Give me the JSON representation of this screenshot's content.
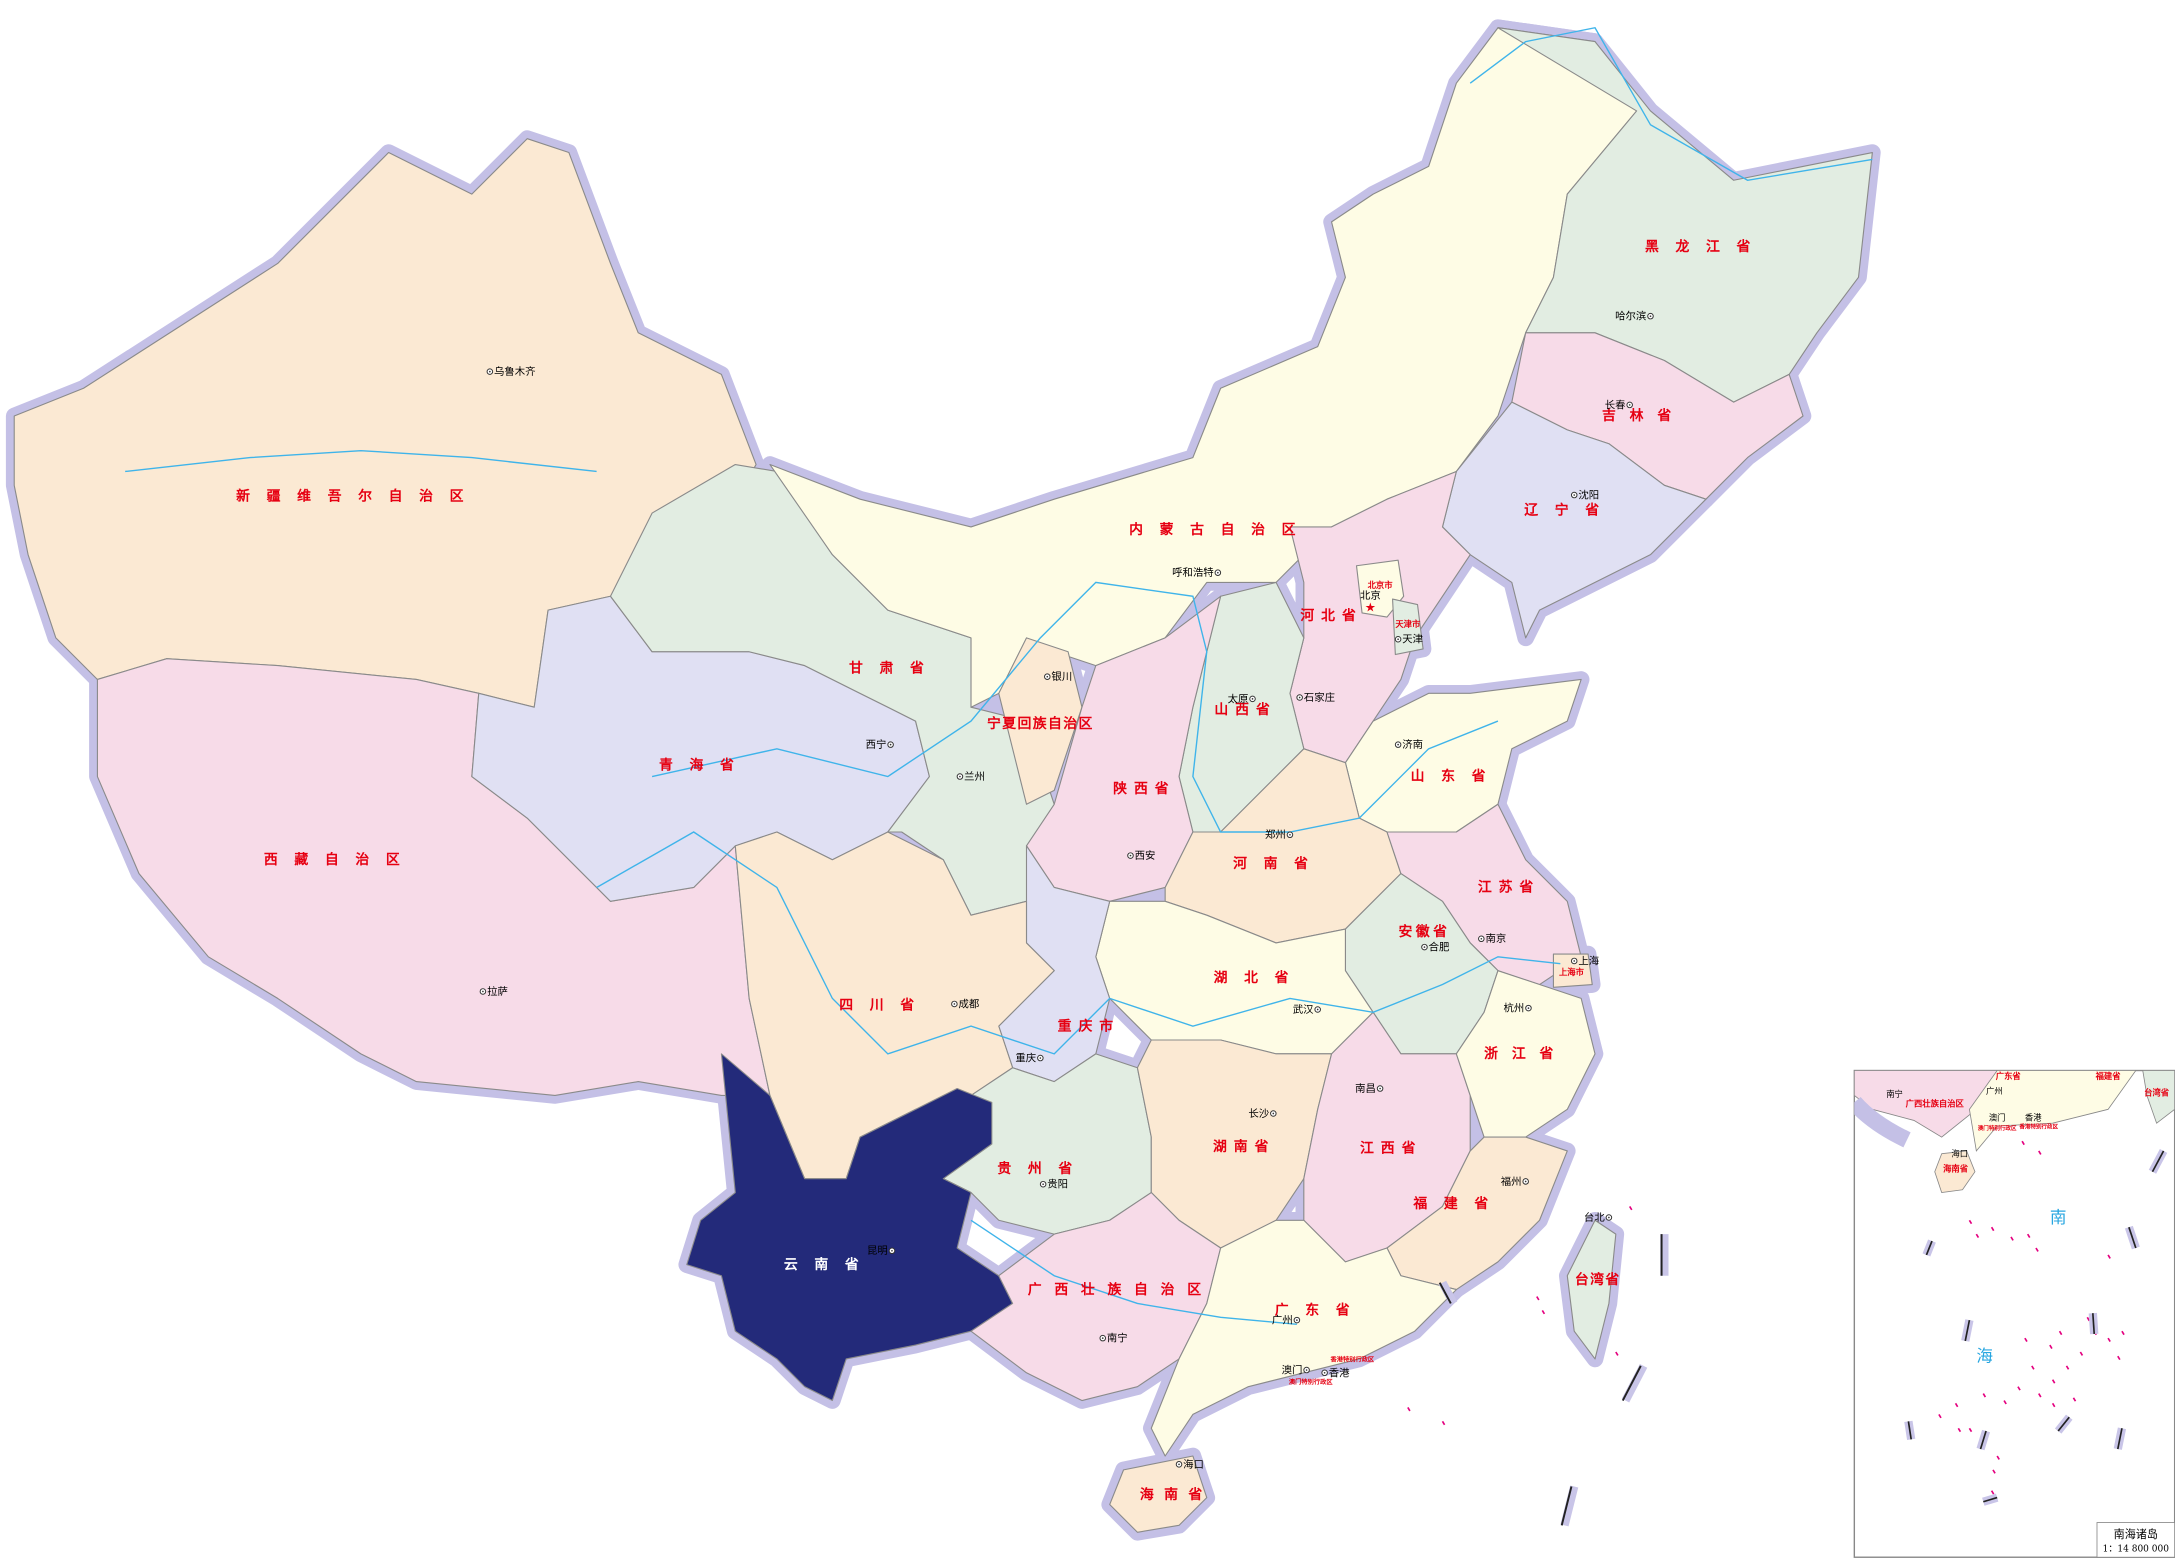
{
  "map": {
    "highlighted_province": "云南省",
    "colors": {
      "highlight": "#232a7a",
      "cream": "#fefce5",
      "peach": "#fbe9d3",
      "pink": "#f7dbe8",
      "green": "#e2ede2",
      "lavender": "#e0e0f3",
      "border_halo": "#c4c0e6",
      "river": "#3fb4ea",
      "label": "#e60012",
      "islands": "#e4007f"
    },
    "provinces": [
      {
        "name": "新疆维吾尔自治区",
        "color": "#fbe9d3"
      },
      {
        "name": "西藏自治区",
        "color": "#f7dbe8"
      },
      {
        "name": "青海省",
        "color": "#e0e0f3"
      },
      {
        "name": "甘肃省",
        "color": "#e2ede2"
      },
      {
        "name": "内蒙古自治区",
        "color": "#fefce5"
      },
      {
        "name": "黑龙江省",
        "color": "#e2ede2"
      },
      {
        "name": "吉林省",
        "color": "#f7dbe8"
      },
      {
        "name": "辽宁省",
        "color": "#e0e0f3"
      },
      {
        "name": "河北省",
        "color": "#f7dbe8"
      },
      {
        "name": "北京市",
        "color": "#fefce5"
      },
      {
        "name": "天津市",
        "color": "#e2ede2"
      },
      {
        "name": "山西省",
        "color": "#e2ede2"
      },
      {
        "name": "宁夏回族自治区",
        "color": "#fbe9d3"
      },
      {
        "name": "陕西省",
        "color": "#f7dbe8"
      },
      {
        "name": "山东省",
        "color": "#fefce5"
      },
      {
        "name": "河南省",
        "color": "#fbe9d3"
      },
      {
        "name": "江苏省",
        "color": "#f7dbe8"
      },
      {
        "name": "安徽省",
        "color": "#e2ede2"
      },
      {
        "name": "上海市",
        "color": "#fbe9d3"
      },
      {
        "name": "湖北省",
        "color": "#fefce5"
      },
      {
        "name": "重庆市",
        "color": "#e0e0f3"
      },
      {
        "name": "四川省",
        "color": "#fbe9d3"
      },
      {
        "name": "贵州省",
        "color": "#e2ede2"
      },
      {
        "name": "云南省",
        "color": "#232a7a"
      },
      {
        "name": "湖南省",
        "color": "#fbe9d3"
      },
      {
        "name": "江西省",
        "color": "#f7dbe8"
      },
      {
        "name": "浙江省",
        "color": "#fefce5"
      },
      {
        "name": "福建省",
        "color": "#fbe9d3"
      },
      {
        "name": "广西壮族自治区",
        "color": "#f7dbe8"
      },
      {
        "name": "广东省",
        "color": "#fefce5"
      },
      {
        "name": "海南省",
        "color": "#fbe9d3"
      },
      {
        "name": "台湾省",
        "color": "#e2ede2"
      }
    ],
    "special_regions": [
      "香港特别行政区",
      "澳门特别行政区"
    ],
    "cities": [
      {
        "name": "乌鲁木齐"
      },
      {
        "name": "拉萨"
      },
      {
        "name": "西宁"
      },
      {
        "name": "兰州"
      },
      {
        "name": "银川"
      },
      {
        "name": "呼和浩特"
      },
      {
        "name": "哈尔滨"
      },
      {
        "name": "长春"
      },
      {
        "name": "沈阳"
      },
      {
        "name": "北京",
        "capital": true
      },
      {
        "name": "天津"
      },
      {
        "name": "石家庄"
      },
      {
        "name": "太原"
      },
      {
        "name": "济南"
      },
      {
        "name": "郑州"
      },
      {
        "name": "西安"
      },
      {
        "name": "成都"
      },
      {
        "name": "重庆"
      },
      {
        "name": "贵阳"
      },
      {
        "name": "昆明"
      },
      {
        "name": "南宁"
      },
      {
        "name": "广州"
      },
      {
        "name": "海口"
      },
      {
        "name": "长沙"
      },
      {
        "name": "武汉"
      },
      {
        "name": "南昌"
      },
      {
        "name": "合肥"
      },
      {
        "name": "南京"
      },
      {
        "name": "上海"
      },
      {
        "name": "杭州"
      },
      {
        "name": "福州"
      },
      {
        "name": "台北"
      },
      {
        "name": "澳门"
      },
      {
        "name": "香港"
      }
    ],
    "inset": {
      "title": "南海诸岛",
      "scale": "1：14 800 000",
      "sea_label_1": "南",
      "sea_label_2": "海",
      "cities": [
        "南宁",
        "广州",
        "澳门",
        "香港",
        "海口"
      ],
      "labels": [
        "广西壮族自治区",
        "广东省",
        "福建省",
        "台湾省",
        "海南省",
        "澳门特别行政区",
        "香港特别行政区"
      ]
    }
  }
}
